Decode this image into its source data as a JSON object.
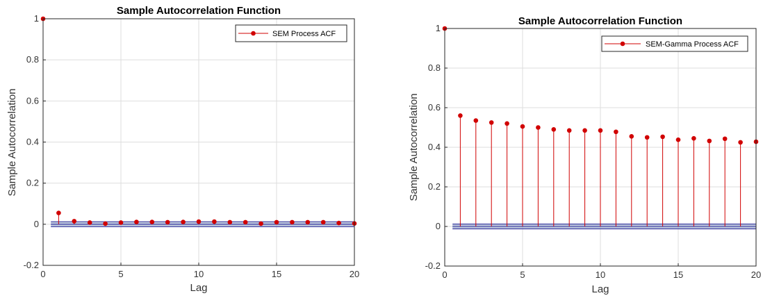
{
  "colors": {
    "stem": "#d10000",
    "bound": "#4a4aa8",
    "bound_fill": "#8ea3c2",
    "grid": "#dedede",
    "axis": "#262626"
  },
  "chart_data": [
    {
      "type": "stem",
      "title": "Sample Autocorrelation Function",
      "xlabel": "Lag",
      "ylabel": "Sample Autocorrelation",
      "xlim": [
        0,
        20
      ],
      "ylim": [
        -0.2,
        1
      ],
      "grid": true,
      "legend_position": "top-right",
      "x_ticks": [
        "0",
        "5",
        "10",
        "15",
        "20"
      ],
      "y_ticks": [
        "-0.2",
        "0",
        "0.2",
        "0.4",
        "0.6",
        "0.8",
        "1"
      ],
      "series": [
        {
          "name": "SEM Process ACF",
          "x": [
            0,
            1,
            2,
            3,
            4,
            5,
            6,
            7,
            8,
            9,
            10,
            11,
            12,
            13,
            14,
            15,
            16,
            17,
            18,
            19,
            20
          ],
          "values": [
            1,
            0.055,
            0.015,
            0.008,
            0.003,
            0.008,
            0.011,
            0.011,
            0.01,
            0.011,
            0.013,
            0.013,
            0.01,
            0.01,
            0.003,
            0.01,
            0.01,
            0.01,
            0.01,
            0.006,
            0.004
          ]
        }
      ],
      "confidence_bounds": [
        -0.012,
        0.012
      ]
    },
    {
      "type": "stem",
      "title": "Sample Autocorrelation Function",
      "xlabel": "Lag",
      "ylabel": "Sample Autocorrelation",
      "xlim": [
        0,
        20
      ],
      "ylim": [
        -0.2,
        1
      ],
      "grid": true,
      "legend_position": "top-right",
      "x_ticks": [
        "0",
        "5",
        "10",
        "15",
        "20"
      ],
      "y_ticks": [
        "-0.2",
        "0",
        "0.2",
        "0.4",
        "0.6",
        "0.8",
        "1"
      ],
      "series": [
        {
          "name": "SEM-Gamma Process ACF",
          "x": [
            0,
            1,
            2,
            3,
            4,
            5,
            6,
            7,
            8,
            9,
            10,
            11,
            12,
            13,
            14,
            15,
            16,
            17,
            18,
            19,
            20
          ],
          "values": [
            1,
            0.56,
            0.535,
            0.525,
            0.52,
            0.505,
            0.5,
            0.49,
            0.485,
            0.485,
            0.485,
            0.478,
            0.455,
            0.45,
            0.453,
            0.438,
            0.445,
            0.432,
            0.443,
            0.425,
            0.428
          ]
        }
      ],
      "confidence_bounds": [
        -0.012,
        0.012
      ]
    }
  ]
}
